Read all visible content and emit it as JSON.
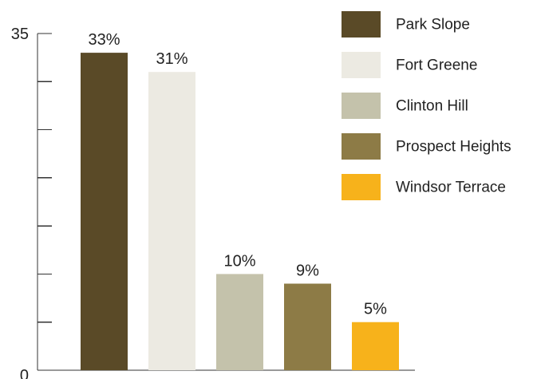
{
  "chart_data": {
    "type": "bar",
    "title": "",
    "xlabel": "",
    "ylabel": "",
    "ylim": [
      0,
      35
    ],
    "y_tick_labels": [
      "0",
      "35"
    ],
    "minor_tick_count": 7,
    "grid": false,
    "legend_position": "top-right",
    "categories": [
      "Park Slope",
      "Fort Greene",
      "Clinton Hill",
      "Prospect Heights",
      "Windsor Terrace"
    ],
    "values": [
      33,
      31,
      10,
      9,
      5
    ],
    "data_labels": [
      "33%",
      "31%",
      "10%",
      "9%",
      "5%"
    ],
    "colors": [
      "#5a4a27",
      "#eceae2",
      "#c4c2ab",
      "#8d7b46",
      "#f7b21b"
    ]
  }
}
